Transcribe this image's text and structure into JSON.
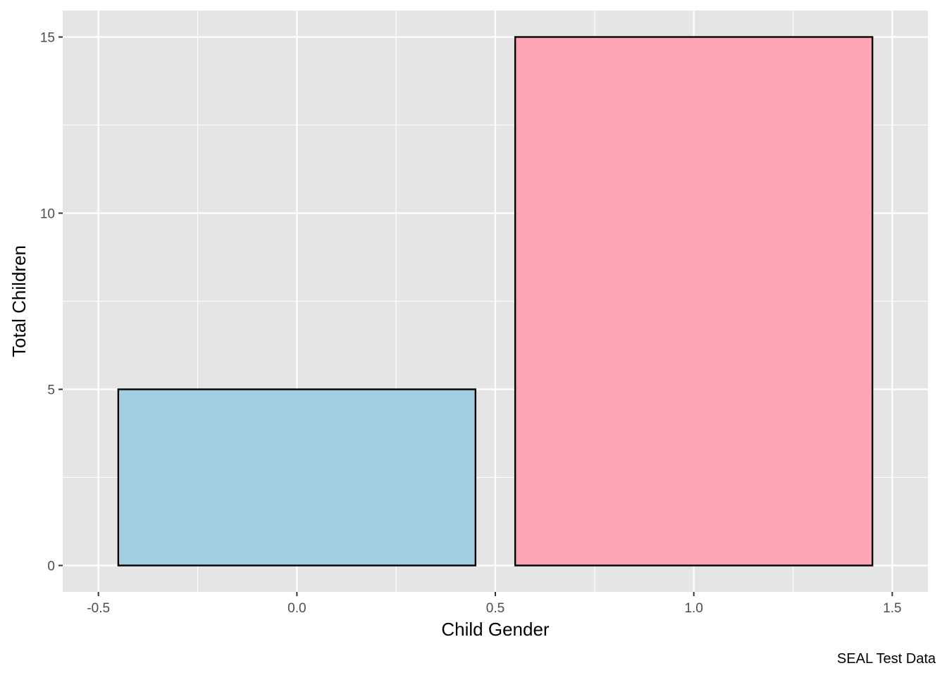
{
  "chart_data": {
    "type": "bar",
    "title": "",
    "xlabel": "Child Gender",
    "ylabel": "Total Children",
    "caption": "SEAL Test Data",
    "x": [
      0,
      1
    ],
    "values": [
      5,
      15
    ],
    "bar_width": 0.9,
    "colors": [
      "#a1cfe0",
      "#fea5b5"
    ],
    "bar_outline_color": "#000000",
    "xlim": [
      -0.59,
      1.59
    ],
    "ylim": [
      -0.75,
      15.75
    ],
    "x_ticks": [
      -0.5,
      0.0,
      0.5,
      1.0,
      1.5
    ],
    "x_tick_labels": [
      "-0.5",
      "0.0",
      "0.5",
      "1.0",
      "1.5"
    ],
    "y_ticks": [
      0,
      5,
      10,
      15
    ],
    "y_tick_labels": [
      "0",
      "5",
      "10",
      "15"
    ],
    "grid": true,
    "panel_background": "#e5e5e5",
    "grid_color": "#ffffff",
    "legend": "none"
  }
}
